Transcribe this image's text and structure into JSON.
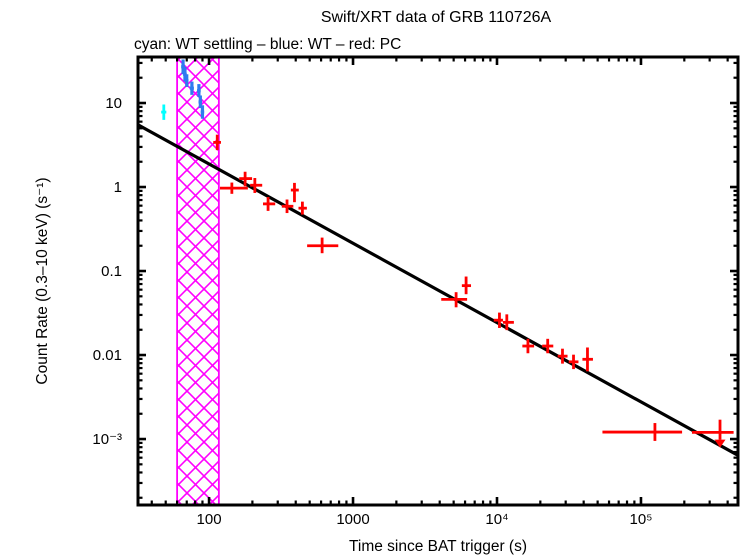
{
  "title": "Swift/XRT data of GRB 110726A",
  "subtitle": "cyan: WT settling – blue: WT – red: PC",
  "chart_data": {
    "type": "scatter",
    "title": "Swift/XRT data of GRB 110726A",
    "subtitle": "cyan: WT settling – blue: WT – red: PC",
    "xlabel": "Time since BAT trigger (s)",
    "ylabel": "Count Rate (0.3–10 keV) (s⁻¹)",
    "xscale": "log",
    "yscale": "log",
    "xlim": [
      32.1,
      472000
    ],
    "ylim": [
      0.000164,
      35.3
    ],
    "grid": false,
    "legend_position": "none",
    "x_ticks": [
      {
        "value": 100,
        "label": "100"
      },
      {
        "value": 1000,
        "label": "1000"
      },
      {
        "value": 10000,
        "label": "10⁴"
      },
      {
        "value": 100000,
        "label": "10⁵"
      }
    ],
    "y_ticks": [
      {
        "value": 10,
        "label": "10"
      },
      {
        "value": 1,
        "label": "1"
      },
      {
        "value": 0.1,
        "label": "0.1"
      },
      {
        "value": 0.01,
        "label": "0.01"
      },
      {
        "value": 0.001,
        "label": "10⁻³"
      }
    ],
    "colors": {
      "wt_settling": "#00ffff",
      "wt": "#2e7bf0",
      "pc": "#ff0000",
      "band": "#ff00ff",
      "fit_line": "#000000",
      "frame": "#000000"
    },
    "settling_band": {
      "t_start": 60,
      "t_end": 117
    },
    "fit_line": {
      "slope_note": "power-law decay, index ~ -0.94",
      "points": [
        {
          "t": 32.1,
          "rate": 5.5
        },
        {
          "t": 472000,
          "rate": 0.00064
        }
      ]
    },
    "series": [
      {
        "name": "WT settling",
        "color_key": "wt_settling",
        "points": [
          {
            "t": 48.5,
            "t_lo": 46.5,
            "t_hi": 50.5,
            "rate": 7.8,
            "r_lo": 6.3,
            "r_hi": 9.6
          }
        ]
      },
      {
        "name": "WT",
        "color_key": "wt",
        "points": [
          {
            "t": 66,
            "t_lo": 64,
            "t_hi": 68,
            "rate": 27,
            "r_lo": 22,
            "r_hi": 33
          },
          {
            "t": 68,
            "t_lo": 66,
            "t_hi": 70,
            "rate": 22,
            "r_lo": 18,
            "r_hi": 27
          },
          {
            "t": 70,
            "t_lo": 68,
            "t_hi": 72,
            "rate": 18.5,
            "r_lo": 15.5,
            "r_hi": 22
          },
          {
            "t": 76,
            "t_lo": 73.5,
            "t_hi": 78.5,
            "rate": 15,
            "r_lo": 12.5,
            "r_hi": 18
          },
          {
            "t": 85,
            "t_lo": 82.5,
            "t_hi": 87.5,
            "rate": 14,
            "r_lo": 11.8,
            "r_hi": 16.8
          },
          {
            "t": 87,
            "t_lo": 84.5,
            "t_hi": 89.5,
            "rate": 10.3,
            "r_lo": 8.7,
            "r_hi": 12.3
          },
          {
            "t": 90,
            "t_lo": 87.5,
            "t_hi": 92.5,
            "rate": 7.8,
            "r_lo": 6.5,
            "r_hi": 9.4
          }
        ]
      },
      {
        "name": "PC",
        "color_key": "pc",
        "points": [
          {
            "t": 114,
            "t_lo": 107,
            "t_hi": 121,
            "rate": 3.4,
            "r_lo": 2.75,
            "r_hi": 4.2
          },
          {
            "t": 144,
            "t_lo": 119,
            "t_hi": 186,
            "rate": 0.97,
            "r_lo": 0.83,
            "r_hi": 1.13
          },
          {
            "t": 178,
            "t_lo": 162,
            "t_hi": 199,
            "rate": 1.26,
            "r_lo": 1.02,
            "r_hi": 1.52
          },
          {
            "t": 208,
            "t_lo": 193,
            "t_hi": 234,
            "rate": 1.05,
            "r_lo": 0.85,
            "r_hi": 1.28
          },
          {
            "t": 257,
            "t_lo": 237,
            "t_hi": 288,
            "rate": 0.63,
            "r_lo": 0.52,
            "r_hi": 0.76
          },
          {
            "t": 348,
            "t_lo": 320,
            "t_hi": 385,
            "rate": 0.59,
            "r_lo": 0.49,
            "r_hi": 0.71
          },
          {
            "t": 392,
            "t_lo": 370,
            "t_hi": 420,
            "rate": 0.92,
            "r_lo": 0.66,
            "r_hi": 1.12
          },
          {
            "t": 445,
            "t_lo": 418,
            "t_hi": 478,
            "rate": 0.56,
            "r_lo": 0.47,
            "r_hi": 0.67
          },
          {
            "t": 610,
            "t_lo": 480,
            "t_hi": 790,
            "rate": 0.2,
            "r_lo": 0.163,
            "r_hi": 0.25
          },
          {
            "t": 5200,
            "t_lo": 4100,
            "t_hi": 6200,
            "rate": 0.046,
            "r_lo": 0.037,
            "r_hi": 0.056
          },
          {
            "t": 6100,
            "t_lo": 5700,
            "t_hi": 6600,
            "rate": 0.067,
            "r_lo": 0.053,
            "r_hi": 0.086
          },
          {
            "t": 10400,
            "t_lo": 9500,
            "t_hi": 11000,
            "rate": 0.026,
            "r_lo": 0.021,
            "r_hi": 0.032
          },
          {
            "t": 11700,
            "t_lo": 11000,
            "t_hi": 13100,
            "rate": 0.0245,
            "r_lo": 0.0198,
            "r_hi": 0.0305
          },
          {
            "t": 16400,
            "t_lo": 15000,
            "t_hi": 18100,
            "rate": 0.0128,
            "r_lo": 0.0105,
            "r_hi": 0.0156
          },
          {
            "t": 22500,
            "t_lo": 20600,
            "t_hi": 24600,
            "rate": 0.0128,
            "r_lo": 0.0105,
            "r_hi": 0.0156
          },
          {
            "t": 28500,
            "t_lo": 26400,
            "t_hi": 30900,
            "rate": 0.0097,
            "r_lo": 0.0079,
            "r_hi": 0.0119
          },
          {
            "t": 34000,
            "t_lo": 31500,
            "t_hi": 36800,
            "rate": 0.0083,
            "r_lo": 0.0068,
            "r_hi": 0.0101
          },
          {
            "t": 42500,
            "t_lo": 39200,
            "t_hi": 46400,
            "rate": 0.0089,
            "r_lo": 0.0064,
            "r_hi": 0.0123
          },
          {
            "t": 125000,
            "t_lo": 54000,
            "t_hi": 193000,
            "rate": 0.00121,
            "r_lo": 0.00095,
            "r_hi": 0.00155
          }
        ]
      }
    ],
    "upper_limit": {
      "series": "PC",
      "color_key": "pc",
      "t": 354000,
      "t_lo": 226000,
      "t_hi": 440000,
      "rate": 0.0012,
      "stem_top": 0.0017,
      "arrow_to": 0.00079
    }
  }
}
